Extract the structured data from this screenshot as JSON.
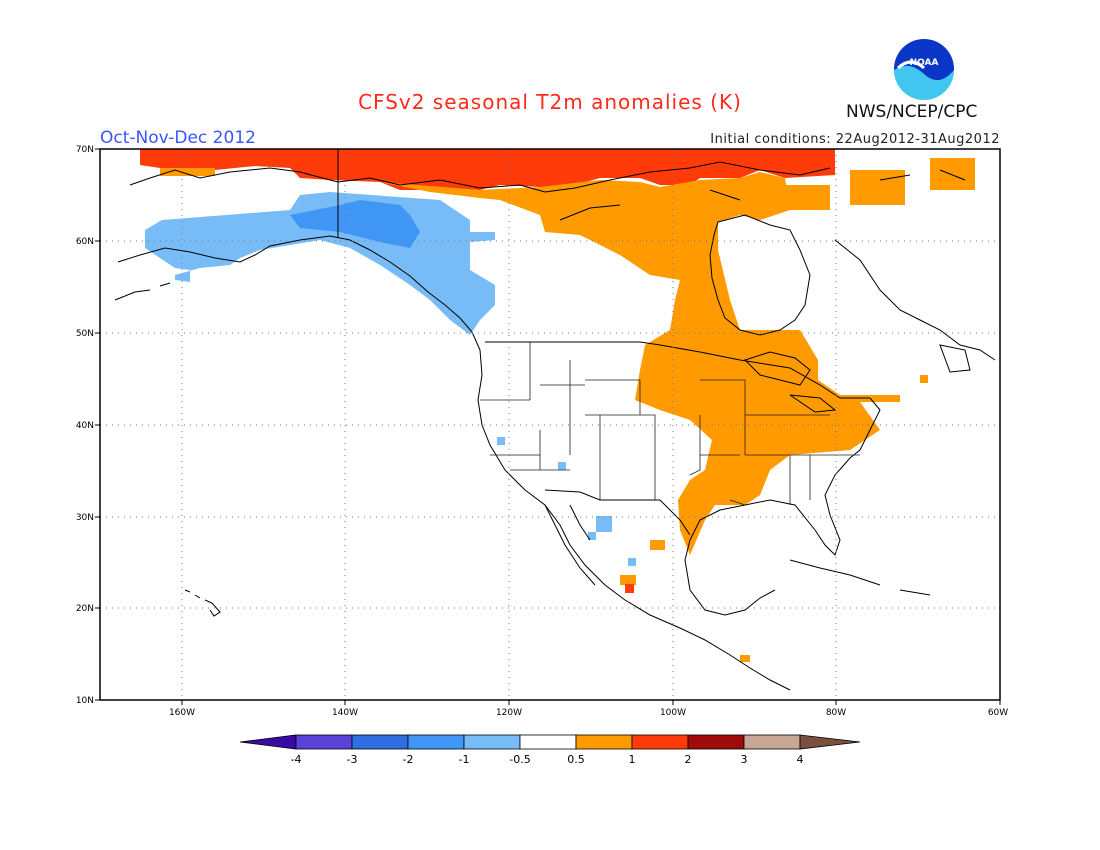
{
  "header": {
    "title": "CFSv2 seasonal T2m anomalies (K)",
    "period": "Oct-Nov-Dec 2012",
    "initial_conditions": "Initial conditions: 22Aug2012-31Aug2012",
    "agency": "NWS/NCEP/CPC",
    "logo_text": "NOAA"
  },
  "map": {
    "lat_ticks": [
      "70N",
      "60N",
      "50N",
      "40N",
      "30N",
      "20N",
      "10N"
    ],
    "lon_ticks": [
      "160W",
      "140W",
      "120W",
      "100W",
      "80W",
      "60W"
    ],
    "lon_range": [
      -170,
      -60
    ],
    "lat_range": [
      10,
      70
    ],
    "grid": "dotted"
  },
  "legend": {
    "labels": [
      "-4",
      "-3",
      "-2",
      "-1",
      "-0.5",
      "0.5",
      "1",
      "2",
      "3",
      "4"
    ],
    "colors": [
      "#3a0aa8",
      "#5a42d8",
      "#2e6ee0",
      "#3f96f4",
      "#78bcf7",
      "#ffffff",
      "#ff9a00",
      "#ff3b0a",
      "#a10a0a",
      "#c9a594",
      "#7a4f40"
    ]
  }
}
